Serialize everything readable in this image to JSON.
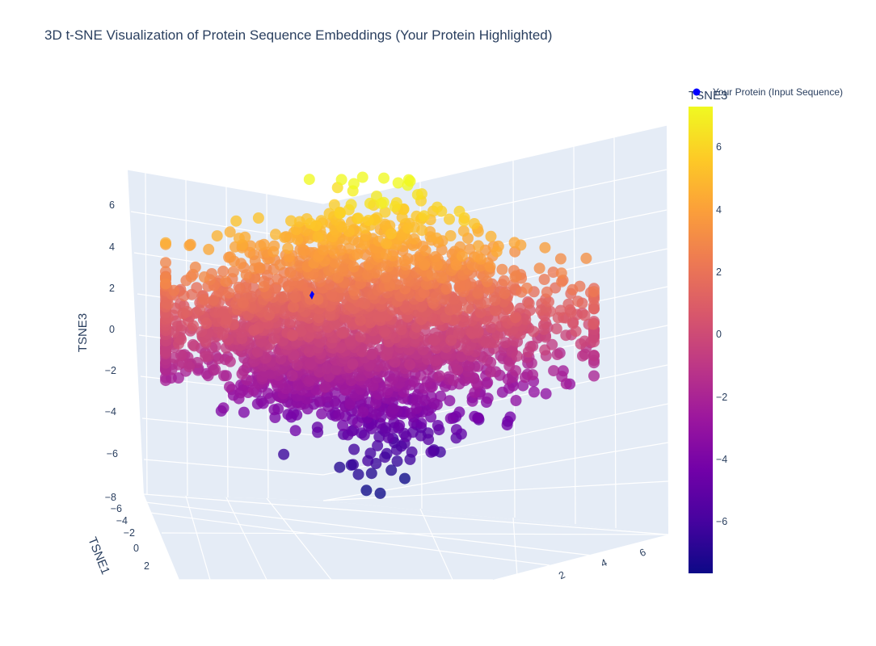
{
  "chart_data": {
    "type": "scatter",
    "projection": "3d",
    "title": "3D t-SNE Visualization of Protein Sequence Embeddings (Your Protein Highlighted)",
    "axes": {
      "z": {
        "label": "TSNE3",
        "ticks": [
          "6",
          "4",
          "2",
          "0",
          "−2",
          "−4",
          "−6",
          "−8"
        ]
      },
      "x": {
        "label": "TSNE1",
        "ticks": [
          "−6",
          "−4",
          "−2",
          "0",
          "2"
        ]
      },
      "y": {
        "label": "",
        "ticks": [
          "2",
          "4",
          "6"
        ]
      }
    },
    "colorbar": {
      "title": "TSNE3",
      "colorscale": "plasma",
      "range": [
        -7.6,
        7.1
      ],
      "ticks": [
        "6",
        "4",
        "2",
        "0",
        "−2",
        "−4",
        "−6"
      ]
    },
    "series": [
      {
        "name": "",
        "marker_color": "TSNE3",
        "approx_point_count": 6000,
        "z_range": [
          -7.6,
          7.1
        ],
        "x_range": [
          -8,
          3
        ],
        "y_range": [
          0,
          7
        ]
      },
      {
        "name": "Your Protein (Input Sequence)",
        "color": "#0000ff",
        "point": {
          "tsne3": 1.6
        }
      }
    ],
    "legend": "top-right",
    "grid": true,
    "background": "#e5ecf6"
  }
}
